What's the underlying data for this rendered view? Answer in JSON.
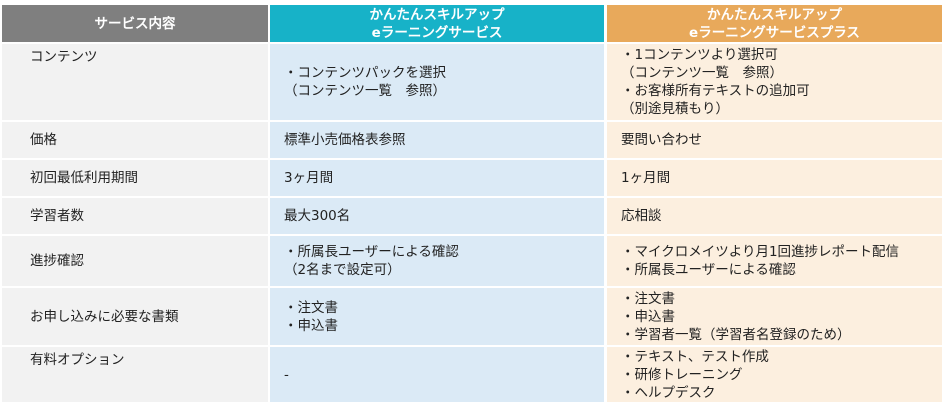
{
  "header": {
    "col1": "サービス内容",
    "col2": [
      "かんたんスキルアップ",
      "eラーニングサービス"
    ],
    "col3": [
      "かんたんスキルアップ",
      "eラーニングサービスプラス"
    ]
  },
  "colors": {
    "header_gray": "#7f7f7f",
    "header_teal": "#17b2c8",
    "header_orange": "#e8a95b",
    "col2_bg": "#dbeaf6",
    "col3_bg": "#fcefdf"
  },
  "rows": [
    {
      "label": "コンテンツ",
      "basic": [
        "・コンテンツパックを選択",
        "（コンテンツ一覧　参照）"
      ],
      "plus": [
        "・1コンテンツより選択可",
        "（コンテンツ一覧　参照）",
        "・お客様所有テキストの追加可",
        "（別途見積もり）"
      ]
    },
    {
      "label": "価格",
      "basic": [
        "標準小売価格表参照"
      ],
      "plus": [
        "要問い合わせ"
      ]
    },
    {
      "label": "初回最低利用期間",
      "basic": [
        "3ヶ月間"
      ],
      "plus": [
        "1ヶ月間"
      ]
    },
    {
      "label": "学習者数",
      "basic": [
        "最大300名"
      ],
      "plus": [
        "応相談"
      ]
    },
    {
      "label": "進捗確認",
      "basic": [
        "・所属長ユーザーによる確認",
        "（2名まで設定可）"
      ],
      "plus": [
        "・マイクロメイツより月1回進捗レポート配信",
        "・所属長ユーザーによる確認"
      ]
    },
    {
      "label": "お申し込みに必要な書類",
      "basic": [
        "・注文書",
        "・申込書"
      ],
      "plus": [
        "・注文書",
        "・申込書",
        "・学習者一覧（学習者名登録のため）"
      ]
    },
    {
      "label": "有料オプション",
      "basic": [
        "-"
      ],
      "plus": [
        "・テキスト、テスト作成",
        "・研修トレーニング",
        "・ヘルプデスク"
      ]
    }
  ]
}
